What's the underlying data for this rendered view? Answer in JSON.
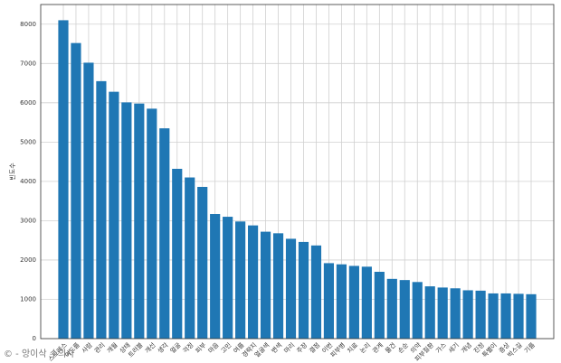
{
  "chart_data": {
    "type": "bar",
    "y_label": "빈도수",
    "watermark": "© - 앙이삭 수의사",
    "categories": [
      "스트레스",
      "여드름",
      "사람",
      "관리",
      "개월",
      "상태",
      "트러블",
      "개선",
      "생각",
      "얼굴",
      "걱정",
      "피부",
      "마음",
      "고민",
      "여름",
      "경락지",
      "얼굴색",
      "변색",
      "마리",
      "주장",
      "결점",
      "이번",
      "피부병",
      "치료",
      "논리",
      "관계",
      "물건",
      "손순",
      "의약",
      "피부질환",
      "가스",
      "세기",
      "개념",
      "진정",
      "특별이",
      "증상",
      "박스길",
      "기름"
    ],
    "values": [
      8100,
      7520,
      7020,
      6550,
      6280,
      6010,
      5980,
      5850,
      5350,
      4320,
      4100,
      3860,
      3170,
      3100,
      2980,
      2880,
      2720,
      2680,
      2540,
      2460,
      2370,
      1920,
      1890,
      1850,
      1830,
      1700,
      1520,
      1490,
      1440,
      1330,
      1300,
      1280,
      1230,
      1220,
      1150,
      1150,
      1140,
      1130
    ],
    "color": "#1f77b4",
    "ylim": [
      0,
      8500
    ],
    "yticks": [
      0,
      1000,
      2000,
      3000,
      4000,
      5000,
      6000,
      7000,
      8000
    ],
    "grid": true
  }
}
